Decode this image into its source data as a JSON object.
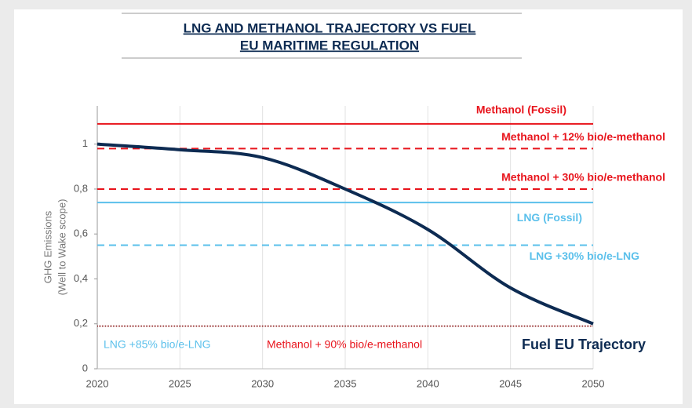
{
  "chart_data": {
    "type": "line",
    "title": [
      "LNG AND METHANOL TRAJECTORY VS FUEL",
      "EU MARITIME REGULATION"
    ],
    "ylabel": [
      "GHG Emissions",
      "(Well to Wake scope)"
    ],
    "x": [
      2020,
      2025,
      2030,
      2035,
      2040,
      2045,
      2050
    ],
    "series": [
      {
        "name": "Fuel EU Trajectory",
        "color": "#0d2b52",
        "values": [
          1,
          0.975,
          0.94,
          0.8,
          0.62,
          0.36,
          0.2
        ]
      }
    ],
    "reference_lines": [
      {
        "name": "Methanol (Fossil)",
        "color": "#e8141c",
        "value": 1.09,
        "style": "solid"
      },
      {
        "name": "Methanol + 12% bio/e-methanol",
        "color": "#e8141c",
        "value": 0.98,
        "style": "dashed"
      },
      {
        "name": "Methanol + 30% bio/e-methanol",
        "color": "#e8141c",
        "value": 0.8,
        "style": "dashed"
      },
      {
        "name": "LNG (Fossil)",
        "color": "#5bc0eb",
        "value": 0.74,
        "style": "solid"
      },
      {
        "name": "LNG +30% bio/e-LNG",
        "color": "#5bc0eb",
        "value": 0.55,
        "style": "dashed"
      },
      {
        "name": "LNG +85% bio/e-LNG",
        "color": "#5bc0eb",
        "value": 0.19,
        "style": "dotted"
      },
      {
        "name": "Methanol + 90% bio/e-methanol",
        "color": "#e8141c",
        "value": 0.19,
        "style": "dotted"
      }
    ],
    "xlim": [
      2020,
      2050
    ],
    "xticks": [
      2020,
      2025,
      2030,
      2035,
      2040,
      2045,
      2050
    ],
    "ylim": [
      0,
      1.17
    ],
    "yticks": [
      0,
      {
        "value": 0.2,
        "label": "0,2"
      },
      {
        "value": 0.4,
        "label": "0,4"
      },
      {
        "value": 0.6,
        "label": "0,6"
      },
      {
        "value": 0.8,
        "label": "0,8"
      },
      1
    ],
    "grid": true
  }
}
